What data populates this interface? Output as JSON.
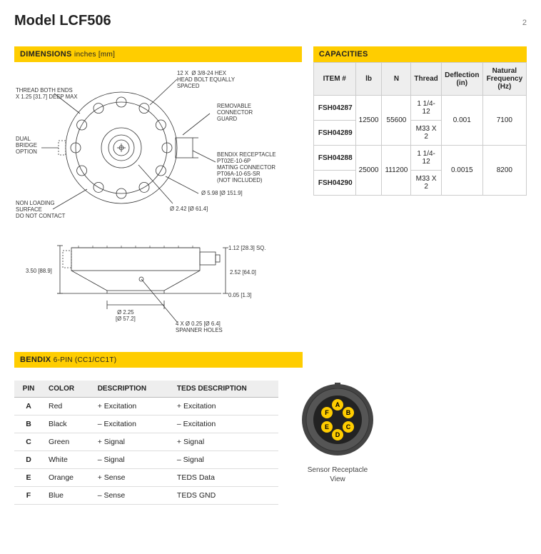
{
  "header": {
    "title": "Model LCF506",
    "page": "2"
  },
  "dimensions": {
    "heading": "DIMENSIONS",
    "subheading": "inches [mm]",
    "callouts": {
      "bolt": "12 X  Ø 3/8-24 HEX\nHEAD BOLT EQUALLY\nSPACED",
      "thread_ends": "THREAD BOTH ENDS\nX 1.25 [31.7] DEEP MAX",
      "dual_bridge": "DUAL\nBRIDGE\nOPTION",
      "guard": "REMOVABLE\nCONNECTOR\nGUARD",
      "bendix": "BENDIX RECEPTACLE\nPT02E-10-6P\nMATING CONNECTOR\nPT06A-10-6S-SR\n(NOT INCLUDED)",
      "nonload": "NON LOADING\nSURFACE\nDO NOT CONTACT",
      "d598": "Ø 5.98 [Ø 151.9]",
      "d242": "Ø 2.42 [Ø 61.4]",
      "sq": "1.12 [28.3] SQ.",
      "h350": "3.50 [88.9]",
      "h252": "2.52 [64.0]",
      "t005": "0.05 [1.3]",
      "d225": "Ø 2.25\n[Ø 57.2]",
      "spanner": "4 X Ø 0.25 [Ø 6.4]\nSPANNER HOLES"
    }
  },
  "capacities": {
    "heading": "CAPACITIES",
    "columns": [
      "ITEM #",
      "lb",
      "N",
      "Thread",
      "Deflection (in)",
      "Natural Frequency (Hz)"
    ],
    "groups": [
      {
        "items": [
          "FSH04287",
          "FSH04289"
        ],
        "lb": "12500",
        "N": "55600",
        "threads": [
          "1 1/4-12",
          "M33 X 2"
        ],
        "deflection": "0.001",
        "freq": "7100"
      },
      {
        "items": [
          "FSH04288",
          "FSH04290"
        ],
        "lb": "25000",
        "N": "111200",
        "threads": [
          "1 1/4-12",
          "M33 X 2"
        ],
        "deflection": "0.0015",
        "freq": "8200"
      }
    ]
  },
  "bendix": {
    "heading": "BENDIX",
    "subheading": "6-PIN (CC1/CC1T)",
    "columns": [
      "PIN",
      "COLOR",
      "DESCRIPTION",
      "TEDS DESCRIPTION"
    ],
    "rows": [
      {
        "pin": "A",
        "color": "Red",
        "desc": "+ Excitation",
        "teds": "+ Excitation"
      },
      {
        "pin": "B",
        "color": "Black",
        "desc": "– Excitation",
        "teds": "– Excitation"
      },
      {
        "pin": "C",
        "color": "Green",
        "desc": "+ Signal",
        "teds": "+ Signal"
      },
      {
        "pin": "D",
        "color": "White",
        "desc": "– Signal",
        "teds": "– Signal"
      },
      {
        "pin": "E",
        "color": "Orange",
        "desc": "+ Sense",
        "teds": "TEDS Data"
      },
      {
        "pin": "F",
        "color": "Blue",
        "desc": "– Sense",
        "teds": "TEDS GND"
      }
    ],
    "connector": {
      "caption": "Sensor Receptacle\nView",
      "pins": [
        "A",
        "B",
        "C",
        "D",
        "E",
        "F"
      ],
      "pin_color": "#ffcd00",
      "body_color": "#444444",
      "center_color": "#222222"
    }
  },
  "colors": {
    "accent": "#ffcd00",
    "grid": "#cccccc",
    "text": "#222222"
  }
}
